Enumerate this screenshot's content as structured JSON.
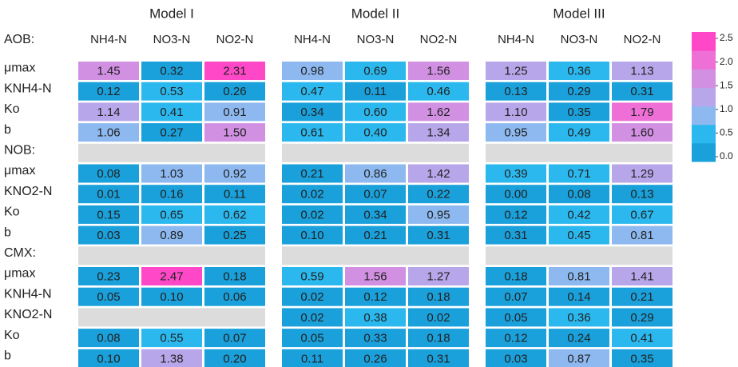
{
  "chart_data": {
    "type": "heatmap",
    "header_label": "AOB:",
    "row_labels": [
      "μmax",
      "KNH4-N",
      "Ko",
      "b",
      "NOB:",
      "μmax",
      "KNO2-N",
      "Ko",
      "b",
      "CMX:",
      "μmax",
      "KNH4-N",
      "KNO2-N",
      "Ko",
      "b"
    ],
    "groups": [
      {
        "name": "Model I",
        "columns": [
          "NH4-N",
          "NO3-N",
          "NO2-N"
        ],
        "values": [
          [
            1.45,
            0.32,
            2.31
          ],
          [
            0.12,
            0.53,
            0.26
          ],
          [
            1.14,
            0.41,
            0.91
          ],
          [
            1.06,
            0.27,
            1.5
          ],
          [
            null,
            null,
            null
          ],
          [
            0.08,
            1.03,
            0.92
          ],
          [
            0.01,
            0.16,
            0.11
          ],
          [
            0.15,
            0.65,
            0.62
          ],
          [
            0.03,
            0.89,
            0.25
          ],
          [
            null,
            null,
            null
          ],
          [
            0.23,
            2.47,
            0.18
          ],
          [
            0.05,
            0.1,
            0.06
          ],
          [
            null,
            null,
            null
          ],
          [
            0.08,
            0.55,
            0.07
          ],
          [
            0.1,
            1.38,
            0.2
          ]
        ],
        "value_labels": [
          [
            "1.45",
            "0.32",
            "2.31"
          ],
          [
            "0.12",
            "0.53",
            "0.26"
          ],
          [
            "1.14",
            "0.41",
            "0.91"
          ],
          [
            "1.06",
            "0.27",
            "1.50"
          ],
          [
            null,
            null,
            null
          ],
          [
            "0.08",
            "1.03",
            "0.92"
          ],
          [
            "0.01",
            "0.16",
            "0.11"
          ],
          [
            "0.15",
            "0.65",
            "0.62"
          ],
          [
            "0.03",
            "0.89",
            "0.25"
          ],
          [
            null,
            null,
            null
          ],
          [
            "0.23",
            "2.47",
            "0.18"
          ],
          [
            "0.05",
            "0.10",
            "0.06"
          ],
          [
            null,
            null,
            null
          ],
          [
            "0.08",
            "0.55",
            "0.07"
          ],
          [
            "0.10",
            "1.38",
            "0.20"
          ]
        ]
      },
      {
        "name": "Model II",
        "columns": [
          "NH4-N",
          "NO3-N",
          "NO2-N"
        ],
        "values": [
          [
            0.98,
            0.69,
            1.56
          ],
          [
            0.47,
            0.11,
            0.46
          ],
          [
            0.34,
            0.6,
            1.62
          ],
          [
            0.61,
            0.4,
            1.34
          ],
          [
            null,
            null,
            null
          ],
          [
            0.21,
            0.86,
            1.42
          ],
          [
            0.02,
            0.07,
            0.22
          ],
          [
            0.02,
            0.34,
            0.95
          ],
          [
            0.1,
            0.21,
            0.31
          ],
          [
            null,
            null,
            null
          ],
          [
            0.59,
            1.56,
            1.27
          ],
          [
            0.02,
            0.12,
            0.18
          ],
          [
            0.02,
            0.38,
            0.02
          ],
          [
            0.05,
            0.33,
            0.18
          ],
          [
            0.11,
            0.26,
            0.31
          ]
        ],
        "value_labels": [
          [
            "0.98",
            "0.69",
            "1.56"
          ],
          [
            "0.47",
            "0.11",
            "0.46"
          ],
          [
            "0.34",
            "0.60",
            "1.62"
          ],
          [
            "0.61",
            "0.40",
            "1.34"
          ],
          [
            null,
            null,
            null
          ],
          [
            "0.21",
            "0.86",
            "1.42"
          ],
          [
            "0.02",
            "0.07",
            "0.22"
          ],
          [
            "0.02",
            "0.34",
            "0.95"
          ],
          [
            "0.10",
            "0.21",
            "0.31"
          ],
          [
            null,
            null,
            null
          ],
          [
            "0.59",
            "1.56",
            "1.27"
          ],
          [
            "0.02",
            "0.12",
            "0.18"
          ],
          [
            "0.02",
            "0.38",
            "0.02"
          ],
          [
            "0.05",
            "0.33",
            "0.18"
          ],
          [
            "0.11",
            "0.26",
            "0.31"
          ]
        ]
      },
      {
        "name": "Model III",
        "columns": [
          "NH4-N",
          "NO3-N",
          "NO2-N"
        ],
        "values": [
          [
            1.25,
            0.36,
            1.13
          ],
          [
            0.13,
            0.29,
            0.31
          ],
          [
            1.1,
            0.35,
            1.79
          ],
          [
            0.95,
            0.49,
            1.6
          ],
          [
            null,
            null,
            null
          ],
          [
            0.39,
            0.71,
            1.29
          ],
          [
            0,
            0.08,
            0.13
          ],
          [
            0.12,
            0.42,
            0.67
          ],
          [
            0.31,
            0.45,
            0.81
          ],
          [
            null,
            null,
            null
          ],
          [
            0.18,
            0.81,
            1.41
          ],
          [
            0.07,
            0.14,
            0.21
          ],
          [
            0.05,
            0.36,
            0.29
          ],
          [
            0.12,
            0.24,
            0.41
          ],
          [
            0.03,
            0.87,
            0.35
          ]
        ],
        "value_labels": [
          [
            "1.25",
            "0.36",
            "1.13"
          ],
          [
            "0.13",
            "0.29",
            "0.31"
          ],
          [
            "1.10",
            "0.35",
            "1.79"
          ],
          [
            "0.95",
            "0.49",
            "1.60"
          ],
          [
            null,
            null,
            null
          ],
          [
            "0.39",
            "0.71",
            "1.29"
          ],
          [
            "0.00",
            "0.08",
            "0.13"
          ],
          [
            "0.12",
            "0.42",
            "0.67"
          ],
          [
            "0.31",
            "0.45",
            "0.81"
          ],
          [
            null,
            null,
            null
          ],
          [
            "0.18",
            "0.81",
            "1.41"
          ],
          [
            "0.07",
            "0.14",
            "0.21"
          ],
          [
            "0.05",
            "0.36",
            "0.29"
          ],
          [
            "0.12",
            "0.24",
            "0.41"
          ],
          [
            "0.03",
            "0.87",
            "0.35"
          ]
        ]
      }
    ],
    "missing_color": "#dcdcdc",
    "colors": [
      "#1aa0da",
      "#2bb8ee",
      "#8db9f0",
      "#b8a6ea",
      "#d290e3",
      "#ee70d6",
      "#ff48c8"
    ],
    "zlim": [
      0,
      2.5
    ],
    "zticks": [
      {
        "value": 0,
        "label": "0.0"
      },
      {
        "value": 0.5,
        "label": "0.5"
      },
      {
        "value": 1,
        "label": "1.0"
      },
      {
        "value": 1.5,
        "label": "1.5"
      },
      {
        "value": 2,
        "label": "2.0"
      },
      {
        "value": 2.5,
        "label": "2.5"
      }
    ]
  }
}
